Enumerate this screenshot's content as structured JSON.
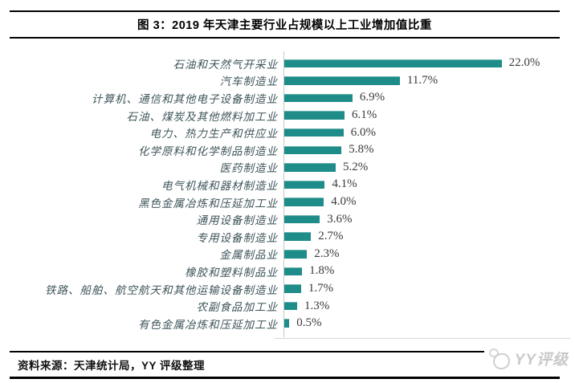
{
  "title": "图 3：2019 年天津主要行业占规模以上工业增加值比重",
  "chart_data": {
    "type": "bar",
    "orientation": "horizontal",
    "title": "图 3：2019 年天津主要行业占规模以上工业增加值比重",
    "categories": [
      "石油和天然气开采业",
      "汽车制造业",
      "计算机、通信和其他电子设备制造业",
      "石油、煤炭及其他燃料加工业",
      "电力、热力生产和供应业",
      "化学原料和化学制品制造业",
      "医药制造业",
      "电气机械和器材制造业",
      "黑色金属冶炼和压延加工业",
      "通用设备制造业",
      "专用设备制造业",
      "金属制品业",
      "橡胶和塑料制品业",
      "铁路、船舶、航空航天和其他运输设备制造业",
      "农副食品加工业",
      "有色金属冶炼和压延加工业"
    ],
    "values": [
      22.0,
      11.7,
      6.9,
      6.1,
      6.0,
      5.8,
      5.2,
      4.1,
      4.0,
      3.6,
      2.7,
      2.3,
      1.8,
      1.7,
      1.3,
      0.5
    ],
    "value_labels": [
      "22.0%",
      "11.7%",
      "6.9%",
      "6.1%",
      "6.0%",
      "5.8%",
      "5.2%",
      "4.1%",
      "4.0%",
      "3.6%",
      "2.7%",
      "2.3%",
      "1.8%",
      "1.7%",
      "1.3%",
      "0.5%"
    ],
    "unit": "%",
    "xlim": [
      0,
      24
    ],
    "grid": false,
    "legend": false,
    "data_labels": true,
    "bar_color": "#1E8C88",
    "category_label_color": "#3e555a",
    "value_label_color": "#3a3a3a"
  },
  "footer": {
    "source": "资料来源：天津统计局，YY 评级整理"
  },
  "watermark": {
    "text": "YY评级",
    "logo": "yy-doodle-logo-icon"
  }
}
